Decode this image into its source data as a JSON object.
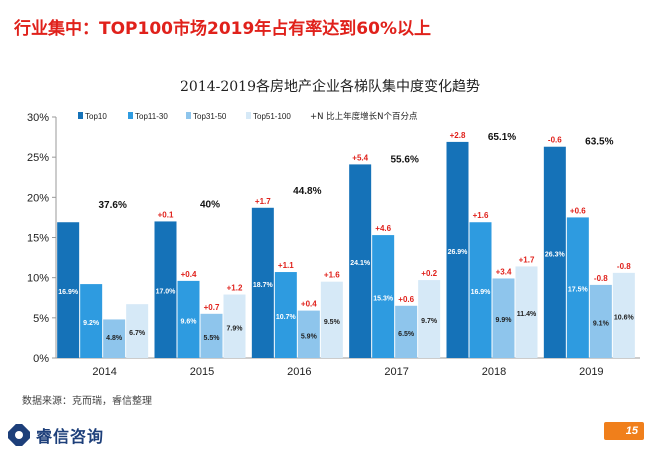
{
  "headline": "行业集中：TOP100市场2019年占有率达到60%以上",
  "source": "数据来源：克而瑞，睿信整理",
  "logo_text": "睿信咨询",
  "page_number": "15",
  "colors": {
    "top10": "#1572b8",
    "top11_30": "#2e9be0",
    "top31_50": "#8ec5ec",
    "top51_100": "#d6e9f7",
    "accent": "#e0211b",
    "page_badge": "#f07f1b"
  },
  "chart_data": {
    "type": "bar",
    "title": "2014-2019各房地产企业各梯队集中度变化趋势",
    "categories": [
      "2014",
      "2015",
      "2016",
      "2017",
      "2018",
      "2019"
    ],
    "ylim": [
      0,
      30
    ],
    "y_ticks": [
      "0%",
      "5%",
      "10%",
      "15%",
      "20%",
      "25%",
      "30%"
    ],
    "legend_position": "top",
    "growth_legend": "+N 比上年度增长N个百分点",
    "series": [
      {
        "name": "Top10",
        "values": [
          16.9,
          17.0,
          18.7,
          24.1,
          26.9,
          26.3
        ],
        "labels": [
          "16.9%",
          "17.0%",
          "18.7%",
          "24.1%",
          "26.9%",
          "26.3%"
        ],
        "changes": [
          "",
          "+0.1",
          "+1.7",
          "+5.4",
          "+2.8",
          "-0.6"
        ]
      },
      {
        "name": "Top11-30",
        "values": [
          9.2,
          9.6,
          10.7,
          15.3,
          16.9,
          17.5
        ],
        "labels": [
          "9.2%",
          "9.6%",
          "10.7%",
          "15.3%",
          "16.9%",
          "17.5%"
        ],
        "changes": [
          "",
          "+0.4",
          "+1.1",
          "+4.6",
          "+1.6",
          "+0.6"
        ]
      },
      {
        "name": "Top31-50",
        "values": [
          4.8,
          5.5,
          5.9,
          6.5,
          9.9,
          9.1
        ],
        "labels": [
          "4.8%",
          "5.5%",
          "5.9%",
          "6.5%",
          "9.9%",
          "9.1%"
        ],
        "changes": [
          "",
          "+0.7",
          "+0.4",
          "+0.6",
          "+3.4",
          "-0.8"
        ]
      },
      {
        "name": "Top51-100",
        "values": [
          6.7,
          7.9,
          9.5,
          9.7,
          11.4,
          10.6
        ],
        "labels": [
          "6.7%",
          "7.9%",
          "9.5%",
          "9.7%",
          "11.4%",
          "10.6%"
        ],
        "changes": [
          "",
          "+1.2",
          "+1.6",
          "+0.2",
          "+1.7",
          "-0.8"
        ]
      }
    ],
    "totals": [
      "37.6%",
      "40%",
      "44.8%",
      "55.6%",
      "65.1%",
      "63.5%"
    ]
  }
}
